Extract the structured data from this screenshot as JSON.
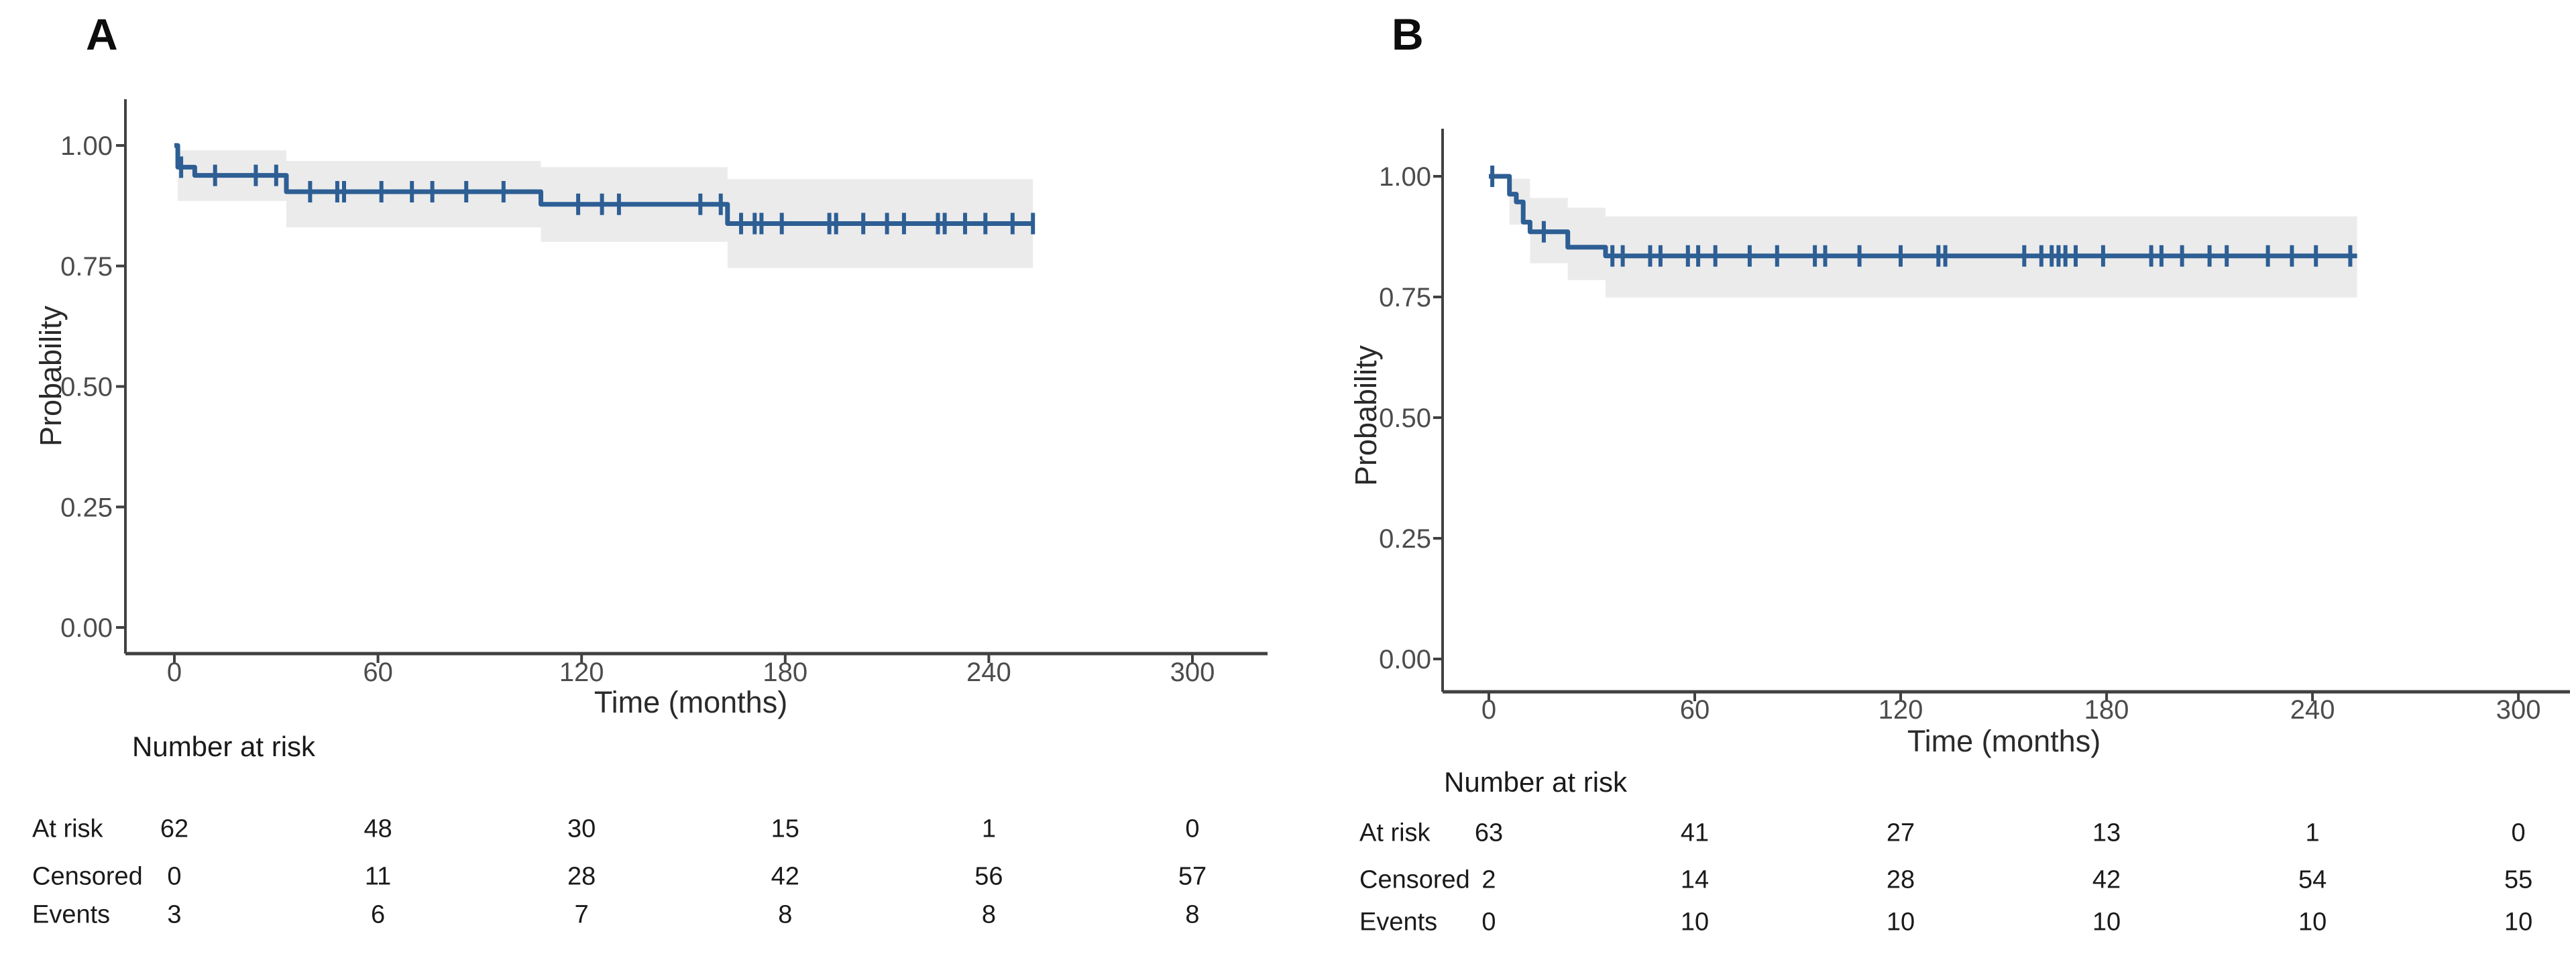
{
  "style": {
    "curve_color": "#2d5e94",
    "band_color": "#ebebeb",
    "axis_color": "#414141",
    "tick_text_color": "#4c4c4c",
    "table_text_color": "#1a1a1a"
  },
  "panels": [
    {
      "label": "A",
      "ylabel": "Probability",
      "xlabel": "Time (months)",
      "risk_table": {
        "title": "Number at risk",
        "columns_time": [
          0,
          60,
          120,
          180,
          240,
          300
        ],
        "rows": [
          {
            "label": "At risk",
            "values": [
              "62",
              "48",
              "30",
              "15",
              "1",
              "0"
            ]
          },
          {
            "label": "Censored",
            "values": [
              "0",
              "11",
              "28",
              "42",
              "56",
              "57"
            ]
          },
          {
            "label": "Events",
            "values": [
              "3",
              "6",
              "7",
              "8",
              "8",
              "8"
            ]
          }
        ]
      },
      "chart_data": {
        "type": "line",
        "subtype": "kaplan-meier-step",
        "title": "",
        "xlabel": "Time (months)",
        "ylabel": "Probability",
        "xlim": [
          0,
          300
        ],
        "ylim": [
          0,
          1
        ],
        "x_ticks": [
          {
            "label": "0",
            "value": 0
          },
          {
            "label": "60",
            "value": 60
          },
          {
            "label": "120",
            "value": 120
          },
          {
            "label": "180",
            "value": 180
          },
          {
            "label": "240",
            "value": 240
          },
          {
            "label": "300",
            "value": 300
          }
        ],
        "y_ticks": [
          {
            "label": "1.00",
            "value": 1.0
          },
          {
            "label": "0.75",
            "value": 0.75
          },
          {
            "label": "0.50",
            "value": 0.5
          },
          {
            "label": "0.25",
            "value": 0.25
          },
          {
            "label": "0.00",
            "value": 0.0
          }
        ],
        "grid": false,
        "legend": "none",
        "steps": [
          [
            0,
            1.0
          ],
          [
            1,
            0.955
          ],
          [
            6,
            0.938
          ],
          [
            33,
            0.904
          ],
          [
            108,
            0.878
          ],
          [
            163,
            0.838
          ],
          [
            253,
            0.838
          ]
        ],
        "censor_marks": [
          [
            2,
            0.955
          ],
          [
            12,
            0.938
          ],
          [
            24,
            0.938
          ],
          [
            30,
            0.938
          ],
          [
            40,
            0.904
          ],
          [
            48,
            0.904
          ],
          [
            50,
            0.904
          ],
          [
            61,
            0.904
          ],
          [
            70,
            0.904
          ],
          [
            76,
            0.904
          ],
          [
            86,
            0.904
          ],
          [
            97,
            0.904
          ],
          [
            119,
            0.878
          ],
          [
            126,
            0.878
          ],
          [
            131,
            0.878
          ],
          [
            155,
            0.878
          ],
          [
            161,
            0.878
          ],
          [
            167,
            0.838
          ],
          [
            171,
            0.838
          ],
          [
            173,
            0.838
          ],
          [
            179,
            0.838
          ],
          [
            193,
            0.838
          ],
          [
            195,
            0.838
          ],
          [
            203,
            0.838
          ],
          [
            210,
            0.838
          ],
          [
            215,
            0.838
          ],
          [
            225,
            0.838
          ],
          [
            227,
            0.838
          ],
          [
            233,
            0.838
          ],
          [
            239,
            0.838
          ],
          [
            247,
            0.838
          ],
          [
            253,
            0.838
          ]
        ],
        "ci_band_steps": [
          [
            1,
            33,
            0.99,
            0.885
          ],
          [
            33,
            108,
            0.968,
            0.83
          ],
          [
            108,
            163,
            0.955,
            0.8
          ],
          [
            163,
            253,
            0.93,
            0.746
          ]
        ]
      }
    },
    {
      "label": "B",
      "ylabel": "Probability",
      "xlabel": "Time (months)",
      "risk_table": {
        "title": "Number at risk",
        "columns_time": [
          0,
          60,
          120,
          180,
          240,
          300
        ],
        "rows": [
          {
            "label": "At risk",
            "values": [
              "63",
              "41",
              "27",
              "13",
              "1",
              "0"
            ]
          },
          {
            "label": "Censored",
            "values": [
              "2",
              "14",
              "28",
              "42",
              "54",
              "55"
            ]
          },
          {
            "label": "Events",
            "values": [
              "0",
              "10",
              "10",
              "10",
              "10",
              "10"
            ]
          }
        ]
      },
      "chart_data": {
        "type": "line",
        "subtype": "kaplan-meier-step",
        "title": "",
        "xlabel": "Time (months)",
        "ylabel": "Probability",
        "xlim": [
          0,
          300
        ],
        "ylim": [
          0,
          1
        ],
        "x_ticks": [
          {
            "label": "0",
            "value": 0
          },
          {
            "label": "60",
            "value": 60
          },
          {
            "label": "120",
            "value": 120
          },
          {
            "label": "180",
            "value": 180
          },
          {
            "label": "240",
            "value": 240
          },
          {
            "label": "300",
            "value": 300
          }
        ],
        "y_ticks": [
          {
            "label": "1.00",
            "value": 1.0
          },
          {
            "label": "0.75",
            "value": 0.75
          },
          {
            "label": "0.50",
            "value": 0.5
          },
          {
            "label": "0.25",
            "value": 0.25
          },
          {
            "label": "0.00",
            "value": 0.0
          }
        ],
        "grid": false,
        "legend": "none",
        "steps": [
          [
            0,
            1.0
          ],
          [
            6,
            0.963
          ],
          [
            8,
            0.947
          ],
          [
            10,
            0.905
          ],
          [
            12,
            0.885
          ],
          [
            23,
            0.853
          ],
          [
            34,
            0.835
          ],
          [
            253,
            0.835
          ]
        ],
        "censor_marks": [
          [
            1,
            1.0
          ],
          [
            16,
            0.885
          ],
          [
            36,
            0.835
          ],
          [
            39,
            0.835
          ],
          [
            47,
            0.835
          ],
          [
            50,
            0.835
          ],
          [
            58,
            0.835
          ],
          [
            61,
            0.835
          ],
          [
            66,
            0.835
          ],
          [
            76,
            0.835
          ],
          [
            84,
            0.835
          ],
          [
            95,
            0.835
          ],
          [
            98,
            0.835
          ],
          [
            108,
            0.835
          ],
          [
            120,
            0.835
          ],
          [
            131,
            0.835
          ],
          [
            133,
            0.835
          ],
          [
            156,
            0.835
          ],
          [
            161,
            0.835
          ],
          [
            164,
            0.835
          ],
          [
            166,
            0.835
          ],
          [
            168,
            0.835
          ],
          [
            171,
            0.835
          ],
          [
            179,
            0.835
          ],
          [
            193,
            0.835
          ],
          [
            196,
            0.835
          ],
          [
            202,
            0.835
          ],
          [
            210,
            0.835
          ],
          [
            215,
            0.835
          ],
          [
            227,
            0.835
          ],
          [
            234,
            0.835
          ],
          [
            241,
            0.835
          ],
          [
            251,
            0.835
          ]
        ],
        "ci_band_steps": [
          [
            6,
            12,
            0.995,
            0.9
          ],
          [
            12,
            23,
            0.955,
            0.82
          ],
          [
            23,
            34,
            0.935,
            0.785
          ],
          [
            34,
            253,
            0.917,
            0.749
          ]
        ]
      }
    }
  ]
}
